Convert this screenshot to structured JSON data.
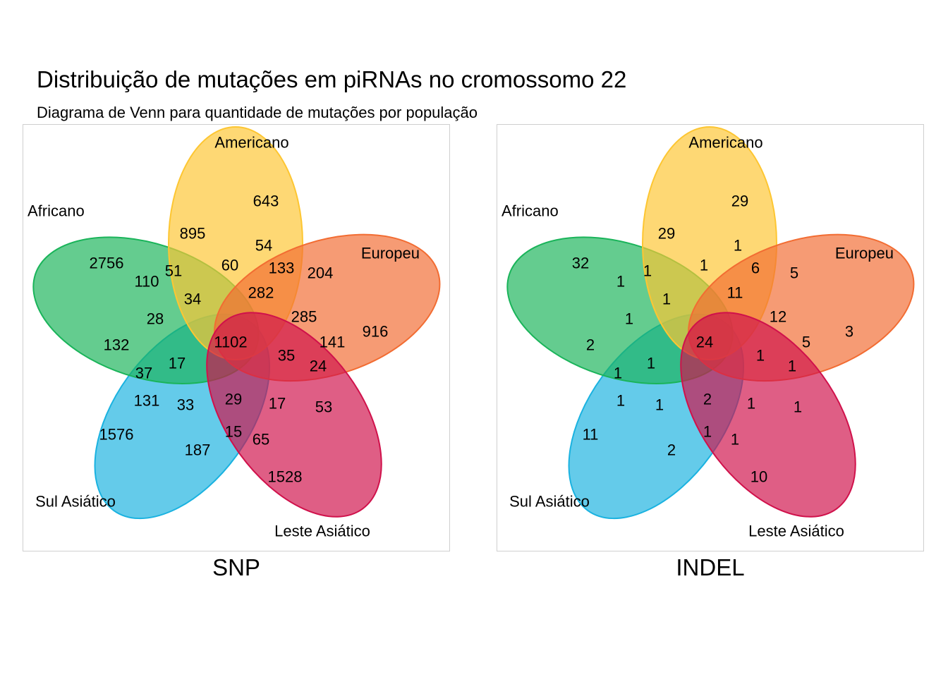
{
  "title": "Distribuição de mutações em piRNAs no cromossomo 22",
  "subtitle": "Diagrama de Venn para quantidade de mutações por população",
  "sets": [
    {
      "key": "africano",
      "label": "Africano",
      "color": "#1ab2e0"
    },
    {
      "key": "americano",
      "label": "Americano",
      "color": "#1ab45a"
    },
    {
      "key": "europeu",
      "label": "Europeu",
      "color": "#fdc632"
    },
    {
      "key": "leste",
      "label": "Leste Asiático",
      "color": "#f26c32"
    },
    {
      "key": "sul",
      "label": "Sul Asiático",
      "color": "#d0114b"
    }
  ],
  "panels": [
    {
      "key": "snp",
      "caption": "SNP",
      "regions": {
        "A": "2756",
        "Am": "643",
        "E": "916",
        "L": "1528",
        "S": "1576",
        "A_Am": "895",
        "Am_E": "204",
        "E_L": "53",
        "L_S": "187",
        "A_S": "132",
        "A_E": "141",
        "Am_L": "65",
        "E_S": "131",
        "A_L": "110",
        "Am_S": "54",
        "A_Am_E": "285",
        "Am_E_L": "17",
        "E_L_S": "33",
        "A_L_S": "28",
        "A_Am_S": "60",
        "A_Am_L": "51",
        "Am_E_S": "133",
        "A_E_L": "24",
        "Am_L_S": "15",
        "A_E_S": "37",
        "A_Am_L_S": "34",
        "A_Am_E_S": "282",
        "A_Am_E_L": "35",
        "Am_E_L_S": "29",
        "A_E_L_S": "17",
        "ALL": "1102"
      }
    },
    {
      "key": "indel",
      "caption": "INDEL",
      "regions": {
        "A": "32",
        "Am": "29",
        "E": "3",
        "L": "10",
        "S": "11",
        "A_Am": "29",
        "Am_E": "5",
        "E_L": "1",
        "L_S": "2",
        "A_S": "2",
        "A_E": "5",
        "Am_L": "1",
        "E_S": "1",
        "A_L": "1",
        "Am_S": "1",
        "A_Am_E": "12",
        "Am_E_L": "1",
        "E_L_S": "1",
        "A_L_S": "1",
        "A_Am_S": "1",
        "A_Am_L": "1",
        "Am_E_S": "6",
        "A_E_L": "1",
        "Am_L_S": "1",
        "A_E_S": "1",
        "A_Am_L_S": "1",
        "A_Am_E_S": "11",
        "A_Am_E_L": "1",
        "Am_E_L_S": "2",
        "A_E_L_S": "1",
        "ALL": "24"
      }
    }
  ]
}
